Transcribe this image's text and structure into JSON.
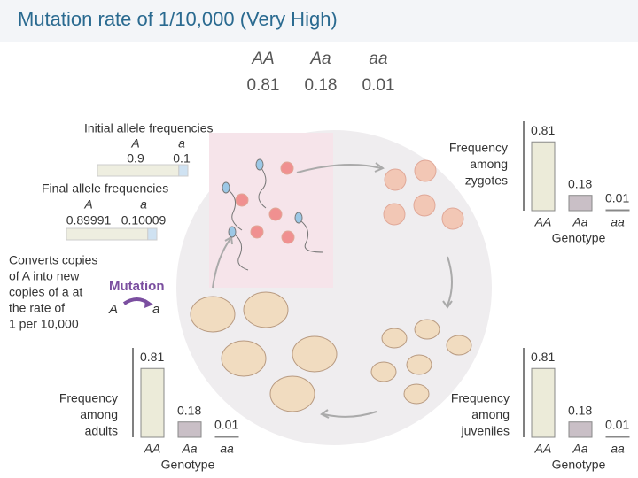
{
  "title": "Mutation rate of 1/10,000 (Very High)",
  "genotype_table": {
    "genotypes": [
      "AA",
      "Aa",
      "aa"
    ],
    "frequencies": [
      0.81,
      0.18,
      0.01
    ]
  },
  "initial_alleles": {
    "label": "Initial allele frequencies",
    "alleles": [
      "A",
      "a"
    ],
    "frequencies": [
      0.9,
      0.1
    ]
  },
  "final_alleles": {
    "label": "Final allele frequencies",
    "alleles": [
      "A",
      "a"
    ],
    "frequencies": [
      0.89991,
      0.10009
    ]
  },
  "mutation": {
    "description": [
      "Converts copies",
      "of A into new",
      "copies of a at",
      "the rate of",
      "1 per 10,000"
    ],
    "label": "Mutation",
    "from": "A",
    "to": "a"
  },
  "charts": [
    {
      "stage": [
        "Frequency",
        "among",
        "zygotes"
      ],
      "categories": [
        "AA",
        "Aa",
        "aa"
      ],
      "values": [
        0.81,
        0.18,
        0.01
      ],
      "axis_label": "Genotype"
    },
    {
      "stage": [
        "Frequency",
        "among",
        "juveniles"
      ],
      "categories": [
        "AA",
        "Aa",
        "aa"
      ],
      "values": [
        0.81,
        0.18,
        0.01
      ],
      "axis_label": "Genotype"
    },
    {
      "stage": [
        "Frequency",
        "among",
        "adults"
      ],
      "categories": [
        "AA",
        "Aa",
        "aa"
      ],
      "values": [
        0.81,
        0.18,
        0.01
      ],
      "axis_label": "Genotype"
    }
  ]
}
